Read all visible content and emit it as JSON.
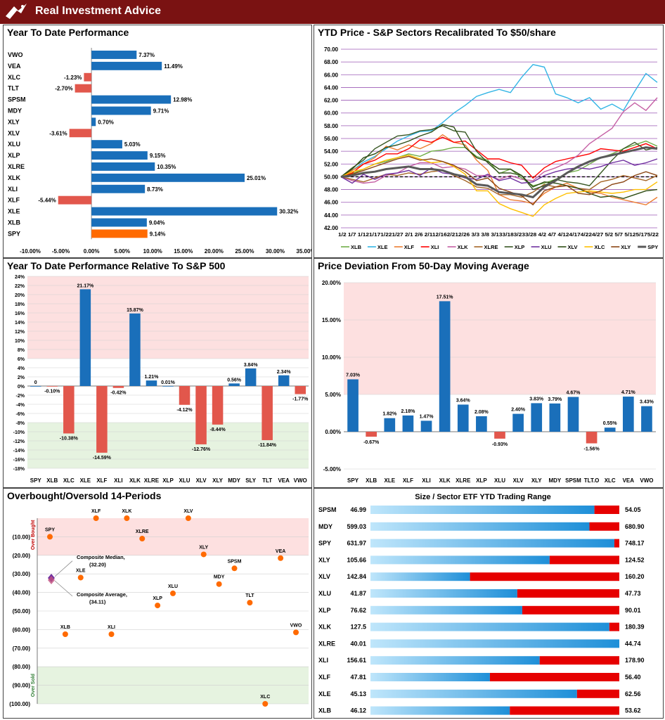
{
  "header": {
    "title": "Real Investment Advice"
  },
  "colors": {
    "blue": "#1a6fba",
    "red": "#e2574c",
    "orange": "#ff6a00",
    "banner": "#7a1212"
  },
  "panel_ytd": {
    "title": "Year To Date Performance",
    "chart_data": {
      "type": "bar",
      "orientation": "horizontal",
      "categories": [
        "VWO",
        "VEA",
        "XLC",
        "TLT",
        "SPSM",
        "MDY",
        "XLY",
        "XLV",
        "XLU",
        "XLP",
        "XLRE",
        "XLK",
        "XLI",
        "XLF",
        "XLE",
        "XLB",
        "SPY"
      ],
      "values": [
        7.37,
        11.49,
        -1.23,
        -2.7,
        12.98,
        9.71,
        0.7,
        -3.61,
        5.03,
        9.15,
        10.35,
        25.01,
        8.73,
        -5.44,
        30.32,
        9.04,
        9.14
      ],
      "labels": [
        "7.37%",
        "11.49%",
        "-1.23%",
        "-2.70%",
        "12.98%",
        "9.71%",
        "0.70%",
        "-3.61%",
        "5.03%",
        "9.15%",
        "10.35%",
        "25.01%",
        "8.73%",
        "-5.44%",
        "30.32%",
        "9.04%",
        "9.14%"
      ],
      "xlim": [
        -10,
        35
      ],
      "ticks": [
        -10,
        -5,
        0,
        5,
        10,
        15,
        20,
        25,
        30,
        35
      ],
      "tick_labels": [
        "-10.00%",
        "-5.00%",
        "0.00%",
        "5.00%",
        "10.00%",
        "15.00%",
        "20.00%",
        "25.00%",
        "30.00%",
        "35.00%"
      ]
    }
  },
  "panel_price": {
    "title": "YTD Price - S&P Sectors Recalibrated To $50/share",
    "chart_data": {
      "type": "line",
      "ylim": [
        42,
        70
      ],
      "yticks": [
        "42.00",
        "44.00",
        "46.00",
        "48.00",
        "50.00",
        "52.00",
        "54.00",
        "56.00",
        "58.00",
        "60.00",
        "62.00",
        "64.00",
        "66.00",
        "68.00",
        "70.00"
      ],
      "x_labels": [
        "1/2",
        "1/7",
        "1/12",
        "1/17",
        "1/22",
        "1/27",
        "2/1",
        "2/6",
        "2/11",
        "2/16",
        "2/21",
        "2/26",
        "3/3",
        "3/8",
        "3/13",
        "3/18",
        "3/23",
        "3/28",
        "4/2",
        "4/7",
        "4/12",
        "4/17",
        "4/22",
        "4/27",
        "5/2",
        "5/7",
        "5/12",
        "5/17",
        "5/22"
      ],
      "x_label_text": "1/2 1/7 1/121/171/221/27 2/1 2/6 2/112/162/212/26 3/3 3/8 3/133/183/233/28 4/2 4/7 4/124/174/224/27 5/2 5/7 5/125/175/22",
      "series": [
        {
          "name": "XLB",
          "color": "#70ad47",
          "values": [
            50,
            50.5,
            51.2,
            52,
            52.4,
            53,
            53.6,
            53.2,
            54,
            54.2,
            54.6,
            54.6,
            53.2,
            52.6,
            50.5,
            51.2,
            49.8,
            48.6,
            49,
            49.6,
            50.6,
            51,
            52,
            53,
            53.6,
            54.4,
            55,
            55.6,
            54.8
          ]
        },
        {
          "name": "XLE",
          "color": "#33b5e5",
          "values": [
            50,
            51,
            52.3,
            53.2,
            54.4,
            55.6,
            56.4,
            57.1,
            57.2,
            58.5,
            60,
            61.2,
            62.6,
            63.2,
            63.7,
            63.2,
            65.6,
            67.6,
            67.2,
            63,
            62.4,
            61.6,
            62.4,
            60.6,
            61.4,
            60.4,
            63.4,
            66.2,
            64.8
          ]
        },
        {
          "name": "XLF",
          "color": "#ed7d31",
          "values": [
            50,
            51,
            52,
            53,
            54.8,
            54.2,
            55,
            54.4,
            55.2,
            56.6,
            55.4,
            55,
            52.6,
            51,
            47.2,
            46.4,
            46.2,
            45.8,
            47.4,
            48.4,
            49,
            48.2,
            47.6,
            47.4,
            46.8,
            46.4,
            46,
            45.6,
            46.8
          ]
        },
        {
          "name": "XLI",
          "color": "#ff0000",
          "values": [
            50,
            50.6,
            52,
            52.6,
            53.6,
            53.6,
            54.4,
            55.8,
            55.4,
            56.2,
            55.4,
            55.6,
            54.2,
            52.8,
            52.8,
            52.2,
            51.8,
            49.8,
            51.4,
            52.4,
            52.8,
            53.2,
            53.6,
            54.4,
            54.2,
            54,
            54.6,
            55.2,
            54.4
          ]
        },
        {
          "name": "XLK",
          "color": "#c55fa4",
          "values": [
            50,
            49.4,
            49,
            49.2,
            50.2,
            50.6,
            51.6,
            52.2,
            52.2,
            51.4,
            51.6,
            51.2,
            50.2,
            50.2,
            49.6,
            50.2,
            49.6,
            49.4,
            50.8,
            51.4,
            52.2,
            53.4,
            55.2,
            56.4,
            57.6,
            60.2,
            61.6,
            60.4,
            62.4
          ]
        },
        {
          "name": "XLRE",
          "color": "#a56527",
          "values": [
            50,
            49.6,
            49.2,
            49.8,
            50.4,
            50.2,
            50.6,
            50.4,
            50.8,
            51,
            50.2,
            49.4,
            48.4,
            48.2,
            47.2,
            47.2,
            46.8,
            47.6,
            48.8,
            48.4,
            48.6,
            48.2,
            48,
            49.2,
            49.6,
            50.2,
            49.8,
            49.4,
            50.2
          ]
        },
        {
          "name": "XLP",
          "color": "#385723",
          "values": [
            50,
            51.4,
            52.6,
            54.4,
            55.4,
            56.4,
            56.6,
            57.2,
            57.4,
            58,
            57.2,
            57,
            54,
            52.2,
            50.6,
            50.6,
            50.2,
            48,
            48.6,
            49.6,
            49.2,
            49,
            48.6,
            50.6,
            52.6,
            54.4,
            55.4,
            54.2,
            54.6
          ]
        },
        {
          "name": "XLU",
          "color": "#7030a0",
          "values": [
            50,
            49,
            50.4,
            49.6,
            50.4,
            50.6,
            51,
            50.2,
            51.4,
            50.6,
            50.4,
            49.8,
            49.6,
            50.4,
            49.4,
            49.8,
            49,
            49.2,
            50.2,
            50.8,
            51.2,
            51.4,
            51.2,
            51.6,
            52.2,
            52.6,
            51.8,
            52.2,
            52.8
          ]
        },
        {
          "name": "XLV",
          "color": "#2e4d14",
          "values": [
            50,
            51.2,
            53,
            53.6,
            54.6,
            55,
            55.6,
            56.4,
            57,
            58.2,
            57.8,
            54.6,
            53,
            52.4,
            51.2,
            51.2,
            50.2,
            48.4,
            49.2,
            49,
            48.6,
            48.2,
            47.4,
            46.8,
            47,
            46.6,
            47.2,
            47.8,
            48
          ]
        },
        {
          "name": "XLC",
          "color": "#ffc000",
          "values": [
            50,
            50.8,
            51.2,
            52,
            52.6,
            53,
            53.4,
            52.8,
            52.2,
            52.4,
            51.6,
            50.4,
            47.8,
            47.8,
            45.8,
            45,
            44.4,
            43.8,
            45.6,
            46.6,
            47.4,
            47.6,
            47.8,
            47.6,
            47.4,
            47.6,
            48,
            48,
            49.2
          ]
        },
        {
          "name": "XLY",
          "color": "#8b4513",
          "values": [
            50,
            50.4,
            51,
            51.6,
            52.2,
            52.8,
            53.2,
            52.6,
            52.8,
            52.4,
            51.8,
            50.8,
            49.4,
            49.8,
            48.2,
            47.6,
            47,
            45.6,
            47.8,
            48.4,
            48.6,
            47.4,
            47.2,
            47.8,
            48.8,
            49.2,
            50.2,
            50.8,
            50.2
          ]
        },
        {
          "name": "SPY",
          "color": "#595959",
          "values": [
            50,
            50.2,
            50.6,
            50.8,
            51.2,
            51.4,
            51.6,
            51.2,
            51.2,
            51,
            50.4,
            50,
            48.8,
            48.6,
            47.6,
            47.4,
            47.2,
            46.8,
            48.4,
            49.4,
            50.6,
            51.6,
            52.4,
            53,
            53.4,
            53.8,
            54.2,
            54.6,
            54.4
          ]
        }
      ]
    }
  },
  "panel_rel": {
    "title": "Year To Date Performance Relative To S&P 500",
    "chart_data": {
      "type": "bar",
      "categories": [
        "SPY",
        "XLB",
        "XLC",
        "XLE",
        "XLF",
        "XLI",
        "XLK",
        "XLRE",
        "XLP",
        "XLU",
        "XLV",
        "XLY",
        "MDY",
        "SLY",
        "TLT",
        "VEA",
        "VWO"
      ],
      "values": [
        0,
        -0.1,
        -10.38,
        21.17,
        -14.59,
        -0.42,
        15.87,
        1.21,
        0.01,
        -4.12,
        -12.76,
        -8.44,
        0.56,
        3.84,
        -11.84,
        2.34,
        -1.77
      ],
      "labels": [
        "0",
        "-0.10%",
        "-10.38%",
        "21.17%",
        "-14.59%",
        "-0.42%",
        "15.87%",
        "1.21%",
        "0.01%",
        "-4.12%",
        "-12.76%",
        "-8.44%",
        "0.56%",
        "3.84%",
        "-11.84%",
        "2.34%",
        "-1.77%"
      ],
      "ylim": [
        -18,
        24
      ],
      "yticks": [
        "-18%",
        "-16%",
        "-14%",
        "-12%",
        "-10%",
        "-8%",
        "-6%",
        "-4%",
        "-2%",
        "0%",
        "2%",
        "4%",
        "6%",
        "8%",
        "10%",
        "12%",
        "14%",
        "16%",
        "18%",
        "20%",
        "22%",
        "24%"
      ]
    }
  },
  "panel_dev": {
    "title": "Price Deviation From 50-Day Moving Average",
    "chart_data": {
      "type": "bar",
      "categories": [
        "SPY",
        "XLB",
        "XLE",
        "XLF",
        "XLI",
        "XLK",
        "XLRE",
        "XLP",
        "XLU",
        "XLV",
        "XLY",
        "MDY",
        "SPSM",
        "TLT.O",
        "XLC",
        "VEA",
        "VWO"
      ],
      "values": [
        7.03,
        -0.67,
        1.82,
        2.18,
        1.47,
        17.51,
        3.64,
        2.08,
        -0.93,
        2.4,
        3.83,
        3.79,
        4.67,
        -1.56,
        0.55,
        4.71,
        3.43
      ],
      "labels": [
        "7.03%",
        "-0.67%",
        "1.82%",
        "2.18%",
        "1.47%",
        "17.51%",
        "3.64%",
        "2.08%",
        "-0.93%",
        "2.40%",
        "3.83%",
        "3.79%",
        "4.67%",
        "-1.56%",
        "0.55%",
        "4.71%",
        "3.43%"
      ],
      "ylim": [
        -5,
        20
      ],
      "yticks": [
        "-5.00%",
        "0.00%",
        "5.00%",
        "10.00%",
        "15.00%",
        "20.00%"
      ]
    }
  },
  "panel_ob": {
    "title": "Overbought/Oversold 14-Periods",
    "zone_over": "Over Bought",
    "zone_under": "Over Sold",
    "median_label": "Composite Median,\n(32.20)",
    "average_label": "Composite Average,\n(34.11)",
    "median_line1": "Composite Median,",
    "median_line2": "(32.20)",
    "average_line1": "Composite Average,",
    "average_line2": "(34.11)",
    "chart_data": {
      "type": "scatter",
      "ylim": [
        0,
        100
      ],
      "y_inverted": true,
      "yticks": [
        "(10.00)",
        "(20.00)",
        "(30.00)",
        "(40.00)",
        "(50.00)",
        "(60.00)",
        "(70.00)",
        "(80.00)",
        "(90.00)",
        "(100.00)"
      ],
      "composite_median": 32.2,
      "composite_average": 34.11,
      "points": [
        {
          "name": "SPY",
          "x": 1,
          "y": 10
        },
        {
          "name": "XLB",
          "x": 2,
          "y": 62.5
        },
        {
          "name": "XLE",
          "x": 3,
          "y": 32
        },
        {
          "name": "XLF",
          "x": 4,
          "y": 0
        },
        {
          "name": "XLI",
          "x": 5,
          "y": 62.5
        },
        {
          "name": "XLK",
          "x": 6,
          "y": 0
        },
        {
          "name": "XLRE",
          "x": 7,
          "y": 11
        },
        {
          "name": "XLP",
          "x": 8,
          "y": 47
        },
        {
          "name": "XLU",
          "x": 9,
          "y": 40.5
        },
        {
          "name": "XLV",
          "x": 10,
          "y": 0
        },
        {
          "name": "XLY",
          "x": 11,
          "y": 19.5
        },
        {
          "name": "MDY",
          "x": 12,
          "y": 35.5
        },
        {
          "name": "SPSM",
          "x": 13,
          "y": 27
        },
        {
          "name": "TLT",
          "x": 14,
          "y": 45.5
        },
        {
          "name": "XLC",
          "x": 15,
          "y": 100
        },
        {
          "name": "VEA",
          "x": 16,
          "y": 21.5
        },
        {
          "name": "VWO",
          "x": 17,
          "y": 61.5
        }
      ]
    }
  },
  "panel_range": {
    "title": "Size / Sector ETF YTD Trading Range",
    "chart_data": {
      "type": "bar",
      "orientation": "horizontal",
      "rows": [
        {
          "name": "SPSM",
          "low": "46.99",
          "high": "54.05",
          "pos": 0.9
        },
        {
          "name": "MDY",
          "low": "599.03",
          "high": "680.90",
          "pos": 0.88
        },
        {
          "name": "SPY",
          "low": "631.97",
          "high": "748.17",
          "pos": 0.98
        },
        {
          "name": "XLY",
          "low": "105.66",
          "high": "124.52",
          "pos": 0.72
        },
        {
          "name": "XLV",
          "low": "142.84",
          "high": "160.20",
          "pos": 0.4
        },
        {
          "name": "XLU",
          "low": "41.87",
          "high": "47.73",
          "pos": 0.59
        },
        {
          "name": "XLP",
          "low": "76.62",
          "high": "90.01",
          "pos": 0.61
        },
        {
          "name": "XLK",
          "low": "127.5",
          "high": "180.39",
          "pos": 0.96
        },
        {
          "name": "XLRE",
          "low": "40.01",
          "high": "44.74",
          "pos": 1.0
        },
        {
          "name": "XLI",
          "low": "156.61",
          "high": "178.90",
          "pos": 0.68
        },
        {
          "name": "XLF",
          "low": "47.81",
          "high": "56.40",
          "pos": 0.48
        },
        {
          "name": "XLE",
          "low": "45.13",
          "high": "62.56",
          "pos": 0.83
        },
        {
          "name": "XLB",
          "low": "46.12",
          "high": "53.62",
          "pos": 0.56
        }
      ]
    }
  }
}
